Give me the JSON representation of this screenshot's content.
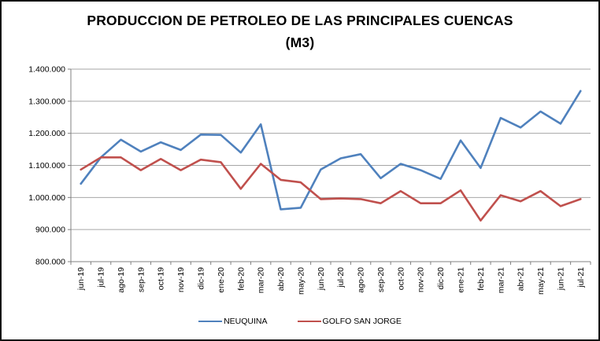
{
  "window": {
    "background": "#FFFFFF",
    "border_color": "#111111"
  },
  "chart_data": {
    "type": "line",
    "title_line1": "PRODUCCION DE PETROLEO DE LAS PRINCIPALES CUENCAS",
    "title_line2": "(M3)",
    "categories": [
      "jun-19",
      "jul-19",
      "ago-19",
      "sep-19",
      "oct-19",
      "nov-19",
      "dic-19",
      "ene-20",
      "feb-20",
      "mar-20",
      "abr-20",
      "may-20",
      "jun-20",
      "jul-20",
      "ago-20",
      "sep-20",
      "oct-20",
      "nov-20",
      "dic-20",
      "ene-21",
      "feb-21",
      "mar-21",
      "abr-21",
      "may-21",
      "jun-21",
      "jul-21"
    ],
    "series": [
      {
        "name": "NEUQUINA",
        "color": "#4F81BD",
        "values": [
          1043000,
          1125000,
          1180000,
          1143000,
          1172000,
          1148000,
          1196000,
          1195000,
          1140000,
          1228000,
          963000,
          968000,
          1087000,
          1122000,
          1135000,
          1060000,
          1105000,
          1085000,
          1058000,
          1178000,
          1092000,
          1248000,
          1218000,
          1268000,
          1230000,
          1332000
        ]
      },
      {
        "name": "GOLFO SAN JORGE",
        "color": "#C0504D",
        "values": [
          1087000,
          1125000,
          1125000,
          1085000,
          1120000,
          1085000,
          1118000,
          1110000,
          1027000,
          1105000,
          1055000,
          1047000,
          995000,
          997000,
          995000,
          982000,
          1020000,
          982000,
          982000,
          1022000,
          928000,
          1007000,
          988000,
          1020000,
          973000,
          995000
        ]
      }
    ],
    "ylim": [
      800000,
      1400000
    ],
    "ytick_step": 100000,
    "ytick_labels": [
      "1.400.000",
      "1.300.000",
      "1.200.000",
      "1.100.000",
      "1.000.000",
      "900.000",
      "800.000"
    ],
    "grid": "horizontal",
    "legend_position": "bottom",
    "gridline_color": "#A6A6A6",
    "axis_color": "#808080",
    "label_color": "#000000"
  }
}
